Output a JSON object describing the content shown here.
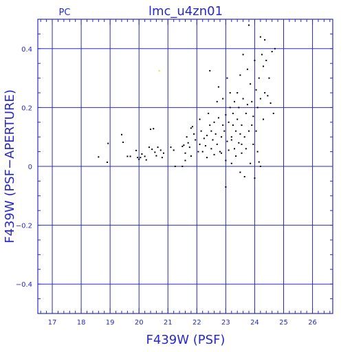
{
  "chart_data": {
    "type": "scatter",
    "title": "lmc_u4zn01",
    "corner_label": "PC",
    "xlabel": "F439W (PSF)",
    "ylabel": "F439W (PSF−APERTURE)",
    "xlim": [
      16.5,
      26.7
    ],
    "ylim": [
      -0.5,
      0.5
    ],
    "x_ticks": [
      17,
      18,
      19,
      20,
      21,
      22,
      23,
      24,
      25,
      26
    ],
    "y_ticks": [
      -0.4,
      -0.2,
      0,
      0.2,
      0.4
    ],
    "y_tick_labels": [
      "−0.4",
      "−0.2",
      "0",
      "0.2",
      "0.4"
    ],
    "grid": true,
    "colors": {
      "axes": "#2828c8",
      "points": "#000000",
      "outlier": "#e0e040",
      "background": "#ffffff"
    },
    "series": [
      {
        "points": [
          [
            18.6,
            0.032
          ],
          [
            18.9,
            0.014
          ],
          [
            18.93,
            0.078
          ],
          [
            19.4,
            0.108
          ],
          [
            19.45,
            0.082
          ],
          [
            19.6,
            0.034
          ],
          [
            19.7,
            0.034
          ],
          [
            19.9,
            0.054
          ],
          [
            19.95,
            0.03
          ],
          [
            20.0,
            0.024
          ],
          [
            20.05,
            0.03
          ],
          [
            20.1,
            0.042
          ],
          [
            20.2,
            0.034
          ],
          [
            20.25,
            0.022
          ],
          [
            20.35,
            0.065
          ],
          [
            20.4,
            0.126
          ],
          [
            20.45,
            0.058
          ],
          [
            20.5,
            0.128
          ],
          [
            20.55,
            0.048
          ],
          [
            20.6,
            0.036
          ],
          [
            20.65,
            0.065
          ],
          [
            20.75,
            0.055
          ],
          [
            20.85,
            0.045
          ],
          [
            20.8,
            0.03
          ],
          [
            21.1,
            0.065
          ],
          [
            21.2,
            0.055
          ],
          [
            21.25,
            0.0
          ],
          [
            21.5,
            0.0
          ],
          [
            21.5,
            0.068
          ],
          [
            21.55,
            0.072
          ],
          [
            21.6,
            0.045
          ],
          [
            21.6,
            0.02
          ],
          [
            21.65,
            0.1
          ],
          [
            21.7,
            0.08
          ],
          [
            21.75,
            0.065
          ],
          [
            21.8,
            0.13
          ],
          [
            21.85,
            0.135
          ],
          [
            21.9,
            0.11
          ],
          [
            21.95,
            0.09
          ],
          [
            21.8,
            0.035
          ],
          [
            22.05,
            0.05
          ],
          [
            22.1,
            0.075
          ],
          [
            22.1,
            0.16
          ],
          [
            22.15,
            0.12
          ],
          [
            22.2,
            0.05
          ],
          [
            22.25,
            0.095
          ],
          [
            22.3,
            0.07
          ],
          [
            22.35,
            0.105
          ],
          [
            22.35,
            0.03
          ],
          [
            22.4,
            0.18
          ],
          [
            22.45,
            0.14
          ],
          [
            22.5,
            0.12
          ],
          [
            22.5,
            0.06
          ],
          [
            22.45,
            0.325
          ],
          [
            22.55,
            0.09
          ],
          [
            22.6,
            0.04
          ],
          [
            22.6,
            0.15
          ],
          [
            22.65,
            0.11
          ],
          [
            22.7,
            0.075
          ],
          [
            22.7,
            0.22
          ],
          [
            22.75,
            0.27
          ],
          [
            22.75,
            0.165
          ],
          [
            22.8,
            0.05
          ],
          [
            22.85,
            0.1
          ],
          [
            22.9,
            0.14
          ],
          [
            22.9,
            0.23
          ],
          [
            22.95,
            0.12
          ],
          [
            23.0,
            0.02
          ],
          [
            23.0,
            0.175
          ],
          [
            23.0,
            -0.07
          ],
          [
            23.05,
            0.085
          ],
          [
            23.05,
            0.3
          ],
          [
            23.1,
            0.15
          ],
          [
            23.1,
            0.055
          ],
          [
            23.15,
            0.2
          ],
          [
            23.15,
            0.25
          ],
          [
            23.2,
            0.1
          ],
          [
            23.2,
            0.01
          ],
          [
            23.25,
            0.18
          ],
          [
            23.25,
            0.14
          ],
          [
            23.3,
            0.06
          ],
          [
            23.3,
            0.22
          ],
          [
            23.35,
            0.12
          ],
          [
            23.35,
            0.035
          ],
          [
            23.4,
            0.16
          ],
          [
            23.4,
            0.25
          ],
          [
            23.45,
            0.08
          ],
          [
            23.45,
            0.2
          ],
          [
            23.5,
            -0.02
          ],
          [
            23.5,
            0.11
          ],
          [
            23.5,
            0.31
          ],
          [
            23.55,
            0.14
          ],
          [
            23.55,
            0.045
          ],
          [
            23.6,
            0.23
          ],
          [
            23.6,
            0.38
          ],
          [
            23.65,
            0.1
          ],
          [
            23.65,
            -0.035
          ],
          [
            23.7,
            0.18
          ],
          [
            23.7,
            0.06
          ],
          [
            23.75,
            0.21
          ],
          [
            23.75,
            0.33
          ],
          [
            23.8,
            0.48
          ],
          [
            23.8,
            0.12
          ],
          [
            23.85,
            0.28
          ],
          [
            23.85,
            0.01
          ],
          [
            23.9,
            0.14
          ],
          [
            23.9,
            0.22
          ],
          [
            23.95,
            0.075
          ],
          [
            23.95,
            0.17
          ],
          [
            24.0,
            -0.04
          ],
          [
            24.0,
            0.36
          ],
          [
            24.05,
            0.26
          ],
          [
            24.05,
            0.12
          ],
          [
            24.1,
            0.2
          ],
          [
            24.1,
            0.05
          ],
          [
            24.15,
            0.015
          ],
          [
            24.15,
            0.3
          ],
          [
            24.2,
            0.44
          ],
          [
            24.2,
            0.23
          ],
          [
            24.25,
            0.38
          ],
          [
            24.3,
            0.34
          ],
          [
            24.3,
            0.16
          ],
          [
            24.35,
            0.43
          ],
          [
            24.35,
            0.25
          ],
          [
            24.4,
            0.36
          ],
          [
            24.45,
            0.24
          ],
          [
            24.5,
            0.3
          ],
          [
            24.55,
            0.215
          ],
          [
            24.6,
            0.39
          ],
          [
            24.65,
            0.18
          ],
          [
            24.7,
            0.4
          ],
          [
            24.2,
            0.0
          ],
          [
            23.2,
            0.09
          ],
          [
            22.85,
            0.045
          ],
          [
            23.55,
            0.075
          ]
        ]
      }
    ],
    "outliers": [
      [
        20.7,
        0.325
      ]
    ]
  }
}
